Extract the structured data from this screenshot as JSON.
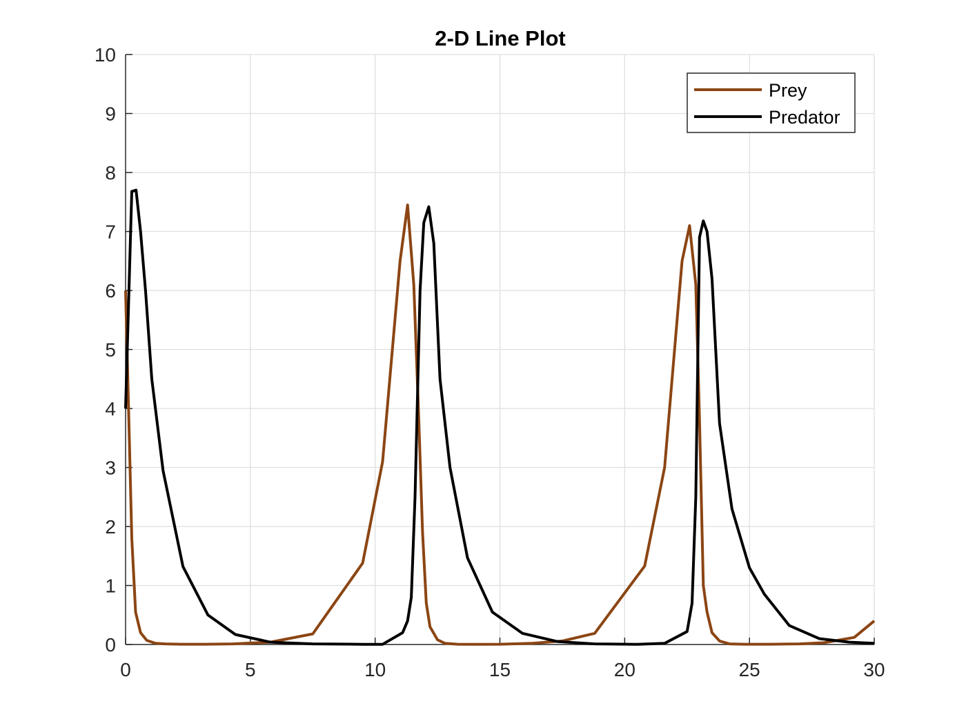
{
  "chart_data": {
    "type": "line",
    "title": "2-D Line Plot",
    "xlabel": "",
    "ylabel": "",
    "xlim": [
      0,
      30
    ],
    "ylim": [
      0,
      10
    ],
    "xticks": [
      0,
      5,
      10,
      15,
      20,
      25,
      30
    ],
    "yticks": [
      0,
      1,
      2,
      3,
      4,
      5,
      6,
      7,
      8,
      9,
      10
    ],
    "grid": true,
    "legend_position": "top-right",
    "series": [
      {
        "name": "Prey",
        "color": "#8B4513",
        "x": [
          0,
          0.15,
          0.25,
          0.4,
          0.6,
          0.85,
          1.2,
          1.6,
          2.2,
          3.2,
          4.3,
          5.8,
          7.5,
          9.5,
          10.3,
          11.0,
          11.3,
          11.55,
          11.75,
          11.9,
          12.05,
          12.2,
          12.5,
          12.8,
          13.3,
          14.0,
          15.0,
          16.3,
          17.5,
          18.8,
          20.8,
          21.6,
          22.3,
          22.6,
          22.85,
          23.0,
          23.15,
          23.3,
          23.5,
          23.8,
          24.2,
          24.8,
          25.8,
          27.0,
          28.0,
          29.2,
          30.0
        ],
        "y": [
          6.0,
          3.5,
          1.8,
          0.55,
          0.2,
          0.07,
          0.02,
          0.01,
          0.005,
          0.005,
          0.01,
          0.04,
          0.18,
          1.38,
          3.1,
          6.5,
          7.45,
          6.1,
          3.8,
          1.9,
          0.7,
          0.3,
          0.08,
          0.02,
          0.005,
          0.002,
          0.005,
          0.02,
          0.06,
          0.19,
          1.33,
          3.0,
          6.5,
          7.1,
          6.1,
          3.8,
          1.0,
          0.55,
          0.2,
          0.06,
          0.01,
          0.005,
          0.005,
          0.01,
          0.03,
          0.12,
          0.4
        ]
      },
      {
        "name": "Predator",
        "color": "#000000",
        "x": [
          0,
          0.25,
          0.42,
          0.6,
          0.8,
          1.05,
          1.5,
          2.3,
          3.3,
          4.4,
          5.8,
          7.5,
          9.5,
          10.3,
          11.1,
          11.3,
          11.45,
          11.6,
          11.8,
          11.95,
          12.15,
          12.35,
          12.6,
          13.0,
          13.7,
          14.7,
          15.9,
          17.3,
          18.8,
          20.5,
          21.6,
          22.5,
          22.7,
          22.85,
          23.0,
          23.15,
          23.3,
          23.5,
          23.8,
          24.3,
          25.0,
          25.6,
          26.6,
          27.8,
          29.0,
          30.0
        ],
        "y": [
          4.0,
          7.68,
          7.7,
          7.0,
          6.0,
          4.5,
          2.95,
          1.32,
          0.5,
          0.17,
          0.04,
          0.01,
          0.003,
          0.003,
          0.2,
          0.4,
          0.8,
          2.5,
          6.0,
          7.15,
          7.42,
          6.8,
          4.5,
          3.0,
          1.47,
          0.55,
          0.19,
          0.05,
          0.01,
          0.003,
          0.02,
          0.22,
          0.7,
          2.5,
          6.9,
          7.18,
          7.0,
          6.2,
          3.75,
          2.3,
          1.3,
          0.85,
          0.32,
          0.1,
          0.04,
          0.02
        ]
      }
    ]
  }
}
